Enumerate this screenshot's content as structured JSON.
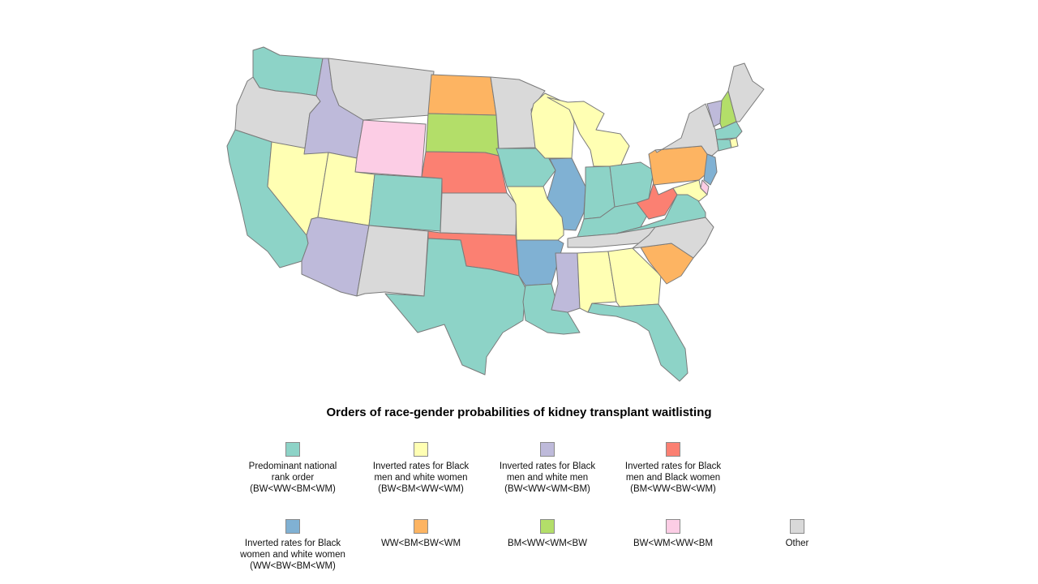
{
  "title": "Orders of race-gender probabilities of kidney transplant waitlisting",
  "colors": {
    "teal": "#8dd3c7",
    "yellow": "#ffffb3",
    "lavender": "#bebada",
    "salmon": "#fb8072",
    "blue": "#80b1d3",
    "orange": "#fdb462",
    "green": "#b3de69",
    "pink": "#fccde5",
    "gray": "#d9d9d9",
    "border": "#7a7a7a"
  },
  "legend": [
    {
      "color": "#8dd3c7",
      "label": "Predominant national\nrank order\n(BW<WW<BM<WM)"
    },
    {
      "color": "#ffffb3",
      "label": "Inverted rates for Black\nmen and white women\n(BW<BM<WW<WM)"
    },
    {
      "color": "#bebada",
      "label": "Inverted rates for Black\nmen and white men\n(BW<WW<WM<BM)"
    },
    {
      "color": "#fb8072",
      "label": "Inverted rates for Black\nmen and Black women\n(BM<WW<BW<WM)"
    },
    {
      "color": "#80b1d3",
      "label": "Inverted rates for Black\nwomen and white women\n(WW<BW<BM<WM)"
    },
    {
      "color": "#fdb462",
      "label": "WW<BM<BW<WM"
    },
    {
      "color": "#b3de69",
      "label": "BM<WW<WM<BW"
    },
    {
      "color": "#fccde5",
      "label": "BW<WM<WW<BM"
    },
    {
      "color": "#d9d9d9",
      "label": "Other"
    }
  ],
  "states": {
    "WA": "teal",
    "OR": "gray",
    "CA": "teal",
    "NV": "yellow",
    "ID": "lavender",
    "MT": "gray",
    "WY": "pink",
    "UT": "yellow",
    "AZ": "lavender",
    "CO": "teal",
    "NM": "gray",
    "ND": "orange",
    "SD": "green",
    "NE": "salmon",
    "KS": "gray",
    "OK": "salmon",
    "TX": "teal",
    "MN": "gray",
    "IA": "teal",
    "MO": "yellow",
    "AR": "blue",
    "LA": "teal",
    "WI": "yellow",
    "IL": "blue",
    "MI": "yellow",
    "IN": "teal",
    "OH": "teal",
    "KY": "teal",
    "TN": "gray",
    "MS": "lavender",
    "AL": "yellow",
    "GA": "yellow",
    "FL": "teal",
    "SC": "orange",
    "NC": "gray",
    "VA": "teal",
    "WV": "salmon",
    "PA": "orange",
    "NY": "gray",
    "VT": "lavender",
    "NH": "green",
    "ME": "gray",
    "MA": "teal",
    "CT": "teal",
    "RI": "yellow",
    "NJ": "blue",
    "DE": "pink",
    "MD": "yellow"
  }
}
